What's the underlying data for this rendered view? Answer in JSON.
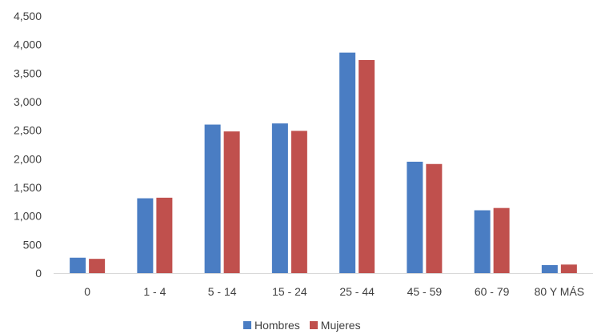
{
  "chart_data": {
    "type": "bar",
    "categories": [
      "0",
      "1 - 4",
      "5 - 14",
      "15 - 24",
      "25 - 44",
      "45 - 59",
      "60 - 79",
      "80 Y MÁS"
    ],
    "series": [
      {
        "name": "Hombres",
        "color": "#4a7dc3",
        "values": [
          270,
          1310,
          2600,
          2620,
          3860,
          1950,
          1100,
          140
        ]
      },
      {
        "name": "Mujeres",
        "color": "#c0504d",
        "values": [
          250,
          1320,
          2480,
          2490,
          3730,
          1910,
          1140,
          150
        ]
      }
    ],
    "y_ticks": [
      "0",
      "500",
      "1,000",
      "1,500",
      "2,000",
      "2,500",
      "3,000",
      "3,500",
      "4,000",
      "4,500"
    ],
    "ylim": [
      0,
      4500
    ],
    "grid": false,
    "legend": "bottom"
  }
}
